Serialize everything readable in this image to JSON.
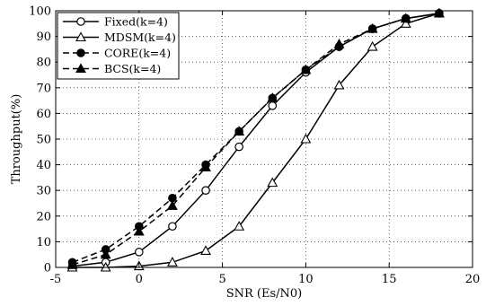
{
  "chart_data": {
    "type": "line",
    "title": "",
    "xlabel": "SNR (Es/N0)",
    "ylabel": "Throughput(%)",
    "xlim": [
      -5,
      20
    ],
    "ylim": [
      0,
      100
    ],
    "xticks": [
      -5,
      0,
      5,
      10,
      15,
      20
    ],
    "yticks": [
      0,
      10,
      20,
      30,
      40,
      50,
      60,
      70,
      80,
      90,
      100
    ],
    "xtick_labels": [
      "-5",
      "0",
      "5",
      "10",
      "15",
      "20"
    ],
    "ytick_labels": [
      "0",
      "10",
      "20",
      "30",
      "40",
      "50",
      "60",
      "70",
      "80",
      "90",
      "100"
    ],
    "grid": true,
    "legend_position": "top-left",
    "series": [
      {
        "name": "Fixed(k=4)",
        "marker": "circle-open",
        "line": "solid",
        "color": "#000000",
        "x": [
          -4,
          -2,
          0,
          2,
          4,
          6,
          8,
          10,
          12,
          14,
          16,
          18
        ],
        "y": [
          0.5,
          2,
          6,
          16,
          30,
          47,
          63,
          76,
          86,
          93,
          97,
          99
        ]
      },
      {
        "name": "MDSM(k=4)",
        "marker": "triangle-open",
        "line": "solid",
        "color": "#000000",
        "x": [
          -4,
          -2,
          0,
          2,
          4,
          6,
          8,
          10,
          12,
          14,
          16,
          18
        ],
        "y": [
          0,
          0,
          0.5,
          2,
          6.5,
          16,
          33,
          50,
          71,
          86,
          95,
          99
        ]
      },
      {
        "name": "CORE(k=4)",
        "marker": "circle-filled",
        "line": "dashed",
        "color": "#000000",
        "x": [
          -4,
          -2,
          0,
          2,
          4,
          6,
          8,
          10,
          12,
          14,
          16,
          18
        ],
        "y": [
          2,
          7,
          16,
          27,
          40,
          53,
          66,
          77,
          86,
          93,
          97,
          99
        ]
      },
      {
        "name": "BCS(k=4)",
        "marker": "triangle-filled",
        "line": "dashed",
        "color": "#000000",
        "x": [
          -4,
          -2,
          0,
          2,
          4,
          6,
          8,
          10,
          12,
          14,
          16,
          18
        ],
        "y": [
          1,
          5,
          14,
          24,
          39,
          53,
          66,
          77,
          87,
          93,
          97,
          99
        ]
      }
    ]
  }
}
